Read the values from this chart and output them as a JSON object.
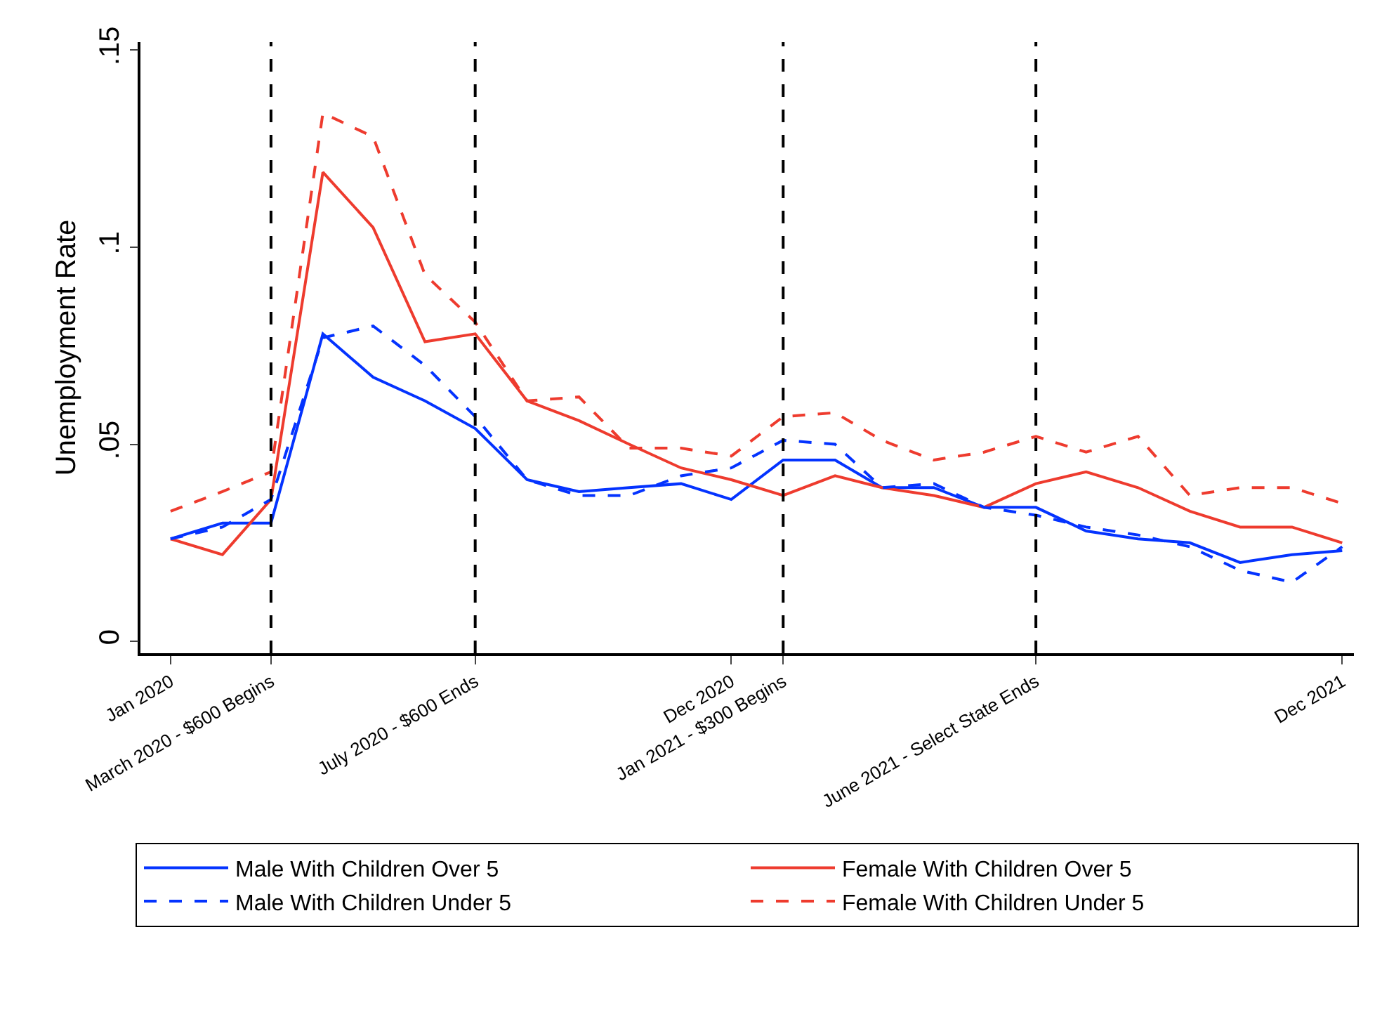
{
  "chart_data": {
    "type": "line",
    "ylabel": "Unemployment Rate",
    "x": [
      "2020-01",
      "2020-02",
      "2020-03",
      "2020-04",
      "2020-05",
      "2020-06",
      "2020-07",
      "2020-08",
      "2020-09",
      "2020-10",
      "2020-11",
      "2020-12",
      "2021-01",
      "2021-02",
      "2021-03",
      "2021-04",
      "2021-05",
      "2021-06",
      "2021-07",
      "2021-08",
      "2021-09",
      "2021-10",
      "2021-11",
      "2021-12"
    ],
    "series": [
      {
        "name": "Male With Children Over 5",
        "color": "#0433ff",
        "line_style": "solid",
        "values": [
          0.026,
          0.03,
          0.03,
          0.078,
          0.067,
          0.061,
          0.054,
          0.041,
          0.038,
          0.039,
          0.04,
          0.036,
          0.046,
          0.046,
          0.039,
          0.039,
          0.034,
          0.034,
          0.028,
          0.026,
          0.025,
          0.02,
          0.022,
          0.023
        ]
      },
      {
        "name": "Female With Children Over 5",
        "color": "#ee3b2e",
        "line_style": "solid",
        "values": [
          0.026,
          0.022,
          0.036,
          0.119,
          0.105,
          0.076,
          0.078,
          0.061,
          0.056,
          0.05,
          0.044,
          0.041,
          0.037,
          0.042,
          0.039,
          0.037,
          0.034,
          0.04,
          0.043,
          0.039,
          0.033,
          0.029,
          0.029,
          0.025
        ]
      },
      {
        "name": "Male With Children Under 5",
        "color": "#0433ff",
        "line_style": "dashed",
        "values": [
          0.026,
          0.029,
          0.036,
          0.077,
          0.08,
          0.07,
          0.057,
          0.041,
          0.037,
          0.037,
          0.042,
          0.044,
          0.051,
          0.05,
          0.039,
          0.04,
          0.034,
          0.032,
          0.029,
          0.027,
          0.024,
          0.018,
          0.015,
          0.024
        ]
      },
      {
        "name": "Female With Children Under 5",
        "color": "#ee3b2e",
        "line_style": "dashed",
        "values": [
          0.033,
          0.038,
          0.043,
          0.134,
          0.128,
          0.093,
          0.081,
          0.061,
          0.062,
          0.049,
          0.049,
          0.047,
          0.057,
          0.058,
          0.051,
          0.046,
          0.048,
          0.052,
          0.048,
          0.052,
          0.037,
          0.039,
          0.039,
          0.035
        ]
      }
    ],
    "xlim": [
      "2019-12-14",
      "2021-12-08"
    ],
    "xticks": [
      {
        "value": "2020-01",
        "label": "Jan 2020"
      },
      {
        "value": "2020-03",
        "label": "March 2020 - $600 Begins"
      },
      {
        "value": "2020-07",
        "label": "July 2020 - $600 Ends"
      },
      {
        "value": "2020-12",
        "label": "Dec 2020"
      },
      {
        "value": "2021-01",
        "label": "Jan 2021 - $300 Begins"
      },
      {
        "value": "2021-06",
        "label": "June 2021 - Select State Ends"
      },
      {
        "value": "2021-12",
        "label": "Dec 2021"
      }
    ],
    "ylim": [
      -0.003,
      0.152
    ],
    "yticks": [
      0,
      {
        "value": 0.05,
        "label": ".05"
      },
      {
        "value": 0.1,
        "label": ".1"
      },
      {
        "value": 0.15,
        "label": ".15"
      }
    ],
    "ref_lines": [
      {
        "axis": "x",
        "value": "2020-03",
        "color": "#000000",
        "line_style": "dashed"
      },
      {
        "axis": "x",
        "value": "2020-07",
        "color": "#000000",
        "line_style": "dashed"
      },
      {
        "axis": "x",
        "value": "2021-01",
        "color": "#000000",
        "line_style": "dashed"
      },
      {
        "axis": "x",
        "value": "2021-06",
        "color": "#000000",
        "line_style": "dashed"
      }
    ],
    "legend": "bottom",
    "marker": "none"
  }
}
